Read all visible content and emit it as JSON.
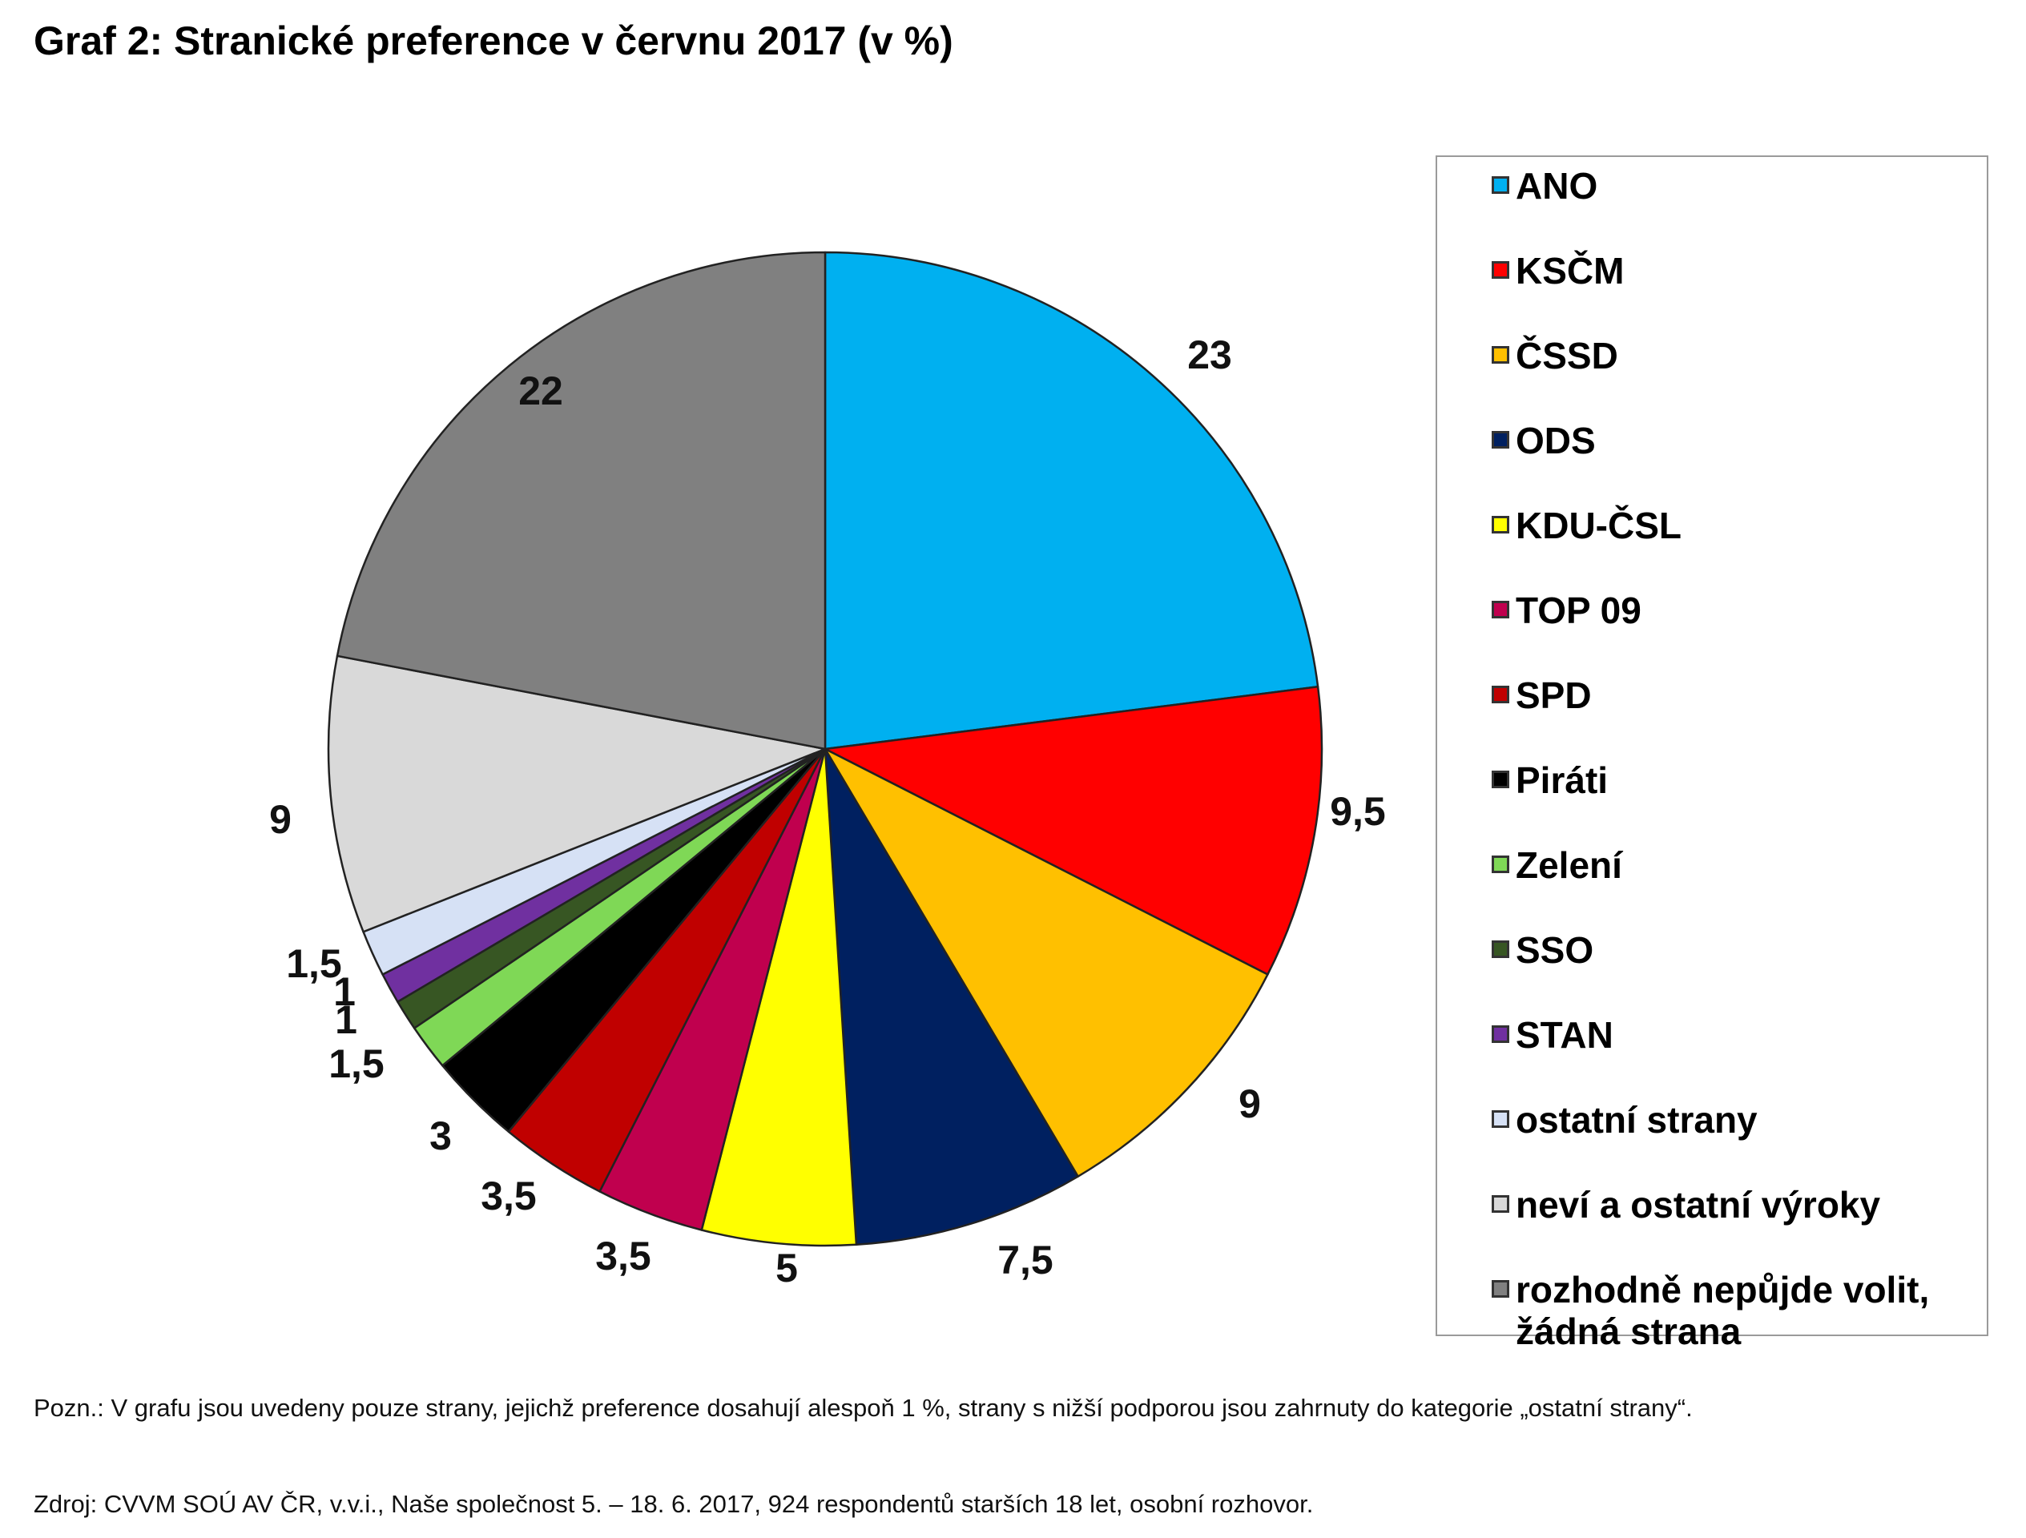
{
  "chart_data": {
    "type": "pie",
    "title": "Graf 2: Stranické preference v červnu 2017 (v %)",
    "slices": [
      {
        "label": "ANO",
        "value": 23,
        "value_label": "23",
        "color": "#00B0F0"
      },
      {
        "label": "KSČM",
        "value": 9.5,
        "value_label": "9,5",
        "color": "#FF0000"
      },
      {
        "label": "ČSSD",
        "value": 9,
        "value_label": "9",
        "color": "#FFC000"
      },
      {
        "label": "ODS",
        "value": 7.5,
        "value_label": "7,5",
        "color": "#002060"
      },
      {
        "label": "KDU-ČSL",
        "value": 5,
        "value_label": "5",
        "color": "#FFFF00"
      },
      {
        "label": "TOP 09",
        "value": 3.5,
        "value_label": "3,5",
        "color": "#C0004E"
      },
      {
        "label": "SPD",
        "value": 3.5,
        "value_label": "3,5",
        "color": "#C00000"
      },
      {
        "label": "Piráti",
        "value": 3,
        "value_label": "3",
        "color": "#000000"
      },
      {
        "label": "Zelení",
        "value": 1.5,
        "value_label": "1,5",
        "color": "#7FD856"
      },
      {
        "label": "SSO",
        "value": 1,
        "value_label": "1",
        "color": "#375623"
      },
      {
        "label": "STAN",
        "value": 1,
        "value_label": "1",
        "color": "#7030A0"
      },
      {
        "label": "ostatní strany",
        "value": 1.5,
        "value_label": "1,5",
        "color": "#D6E1F5"
      },
      {
        "label": "neví a ostatní výroky",
        "value": 9,
        "value_label": "9",
        "color": "#D9D9D9"
      },
      {
        "label": "rozhodně nepůjde volit,\nžádná strana",
        "value": 22,
        "value_label": "22",
        "color": "#808080"
      }
    ],
    "legend_position": "right"
  },
  "notes": {
    "pozn": "Pozn.: V grafu jsou uvedeny pouze strany, jejichž preference dosahují alespoň 1 %, strany s nižší podporou jsou zahrnuty do kategorie „ostatní strany“.",
    "zdroj": "Zdroj: CVVM SOÚ AV ČR, v.v.i., Naše společnost 5. – 18. 6. 2017, 924 respondentů starších 18 let, osobní rozhovor."
  }
}
